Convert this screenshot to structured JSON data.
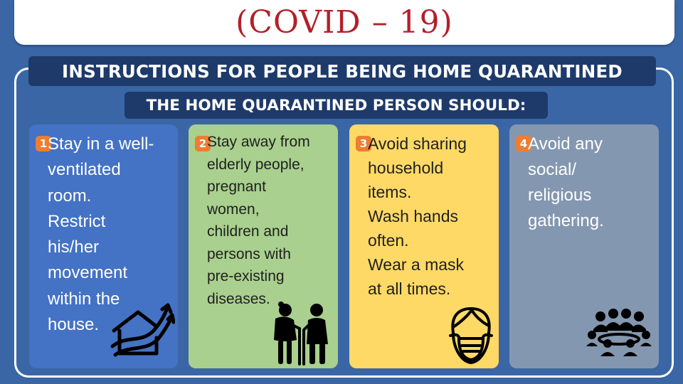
{
  "title": "(COVID – 19)",
  "heading": "INSTRUCTIONS FOR PEOPLE BEING HOME QUARANTINED",
  "subheading": "THE HOME QUARANTINED PERSON SHOULD:",
  "colors": {
    "background": "#3a66a5",
    "title_text": "#b3202a",
    "banner": "#1e3a6b",
    "badge": "#ed7d31",
    "card1": "#4472c4",
    "card2": "#a9d08e",
    "card3": "#ffd966",
    "card4": "#8497b0"
  },
  "cards": [
    {
      "number": "1",
      "lines": [
        "Stay in a well-",
        "ventilated",
        "room.",
        "Restrict",
        "his/her",
        "movement",
        "within the",
        "house."
      ],
      "icon": "house-growth-icon"
    },
    {
      "number": "2",
      "lines": [
        "Stay away from",
        "elderly people,",
        "pregnant",
        "women,",
        "children and",
        "persons with",
        "pre-existing",
        "diseases."
      ],
      "icon": "elderly-couple-icon"
    },
    {
      "number": "3",
      "lines": [
        "Avoid sharing",
        "household",
        "items.",
        "Wash hands",
        "often.",
        "Wear a mask",
        "at all times."
      ],
      "icon": "face-mask-icon"
    },
    {
      "number": "4",
      "lines": [
        "Avoid any",
        "social/",
        "religious",
        "gathering."
      ],
      "icon": "group-gathering-icon"
    }
  ]
}
